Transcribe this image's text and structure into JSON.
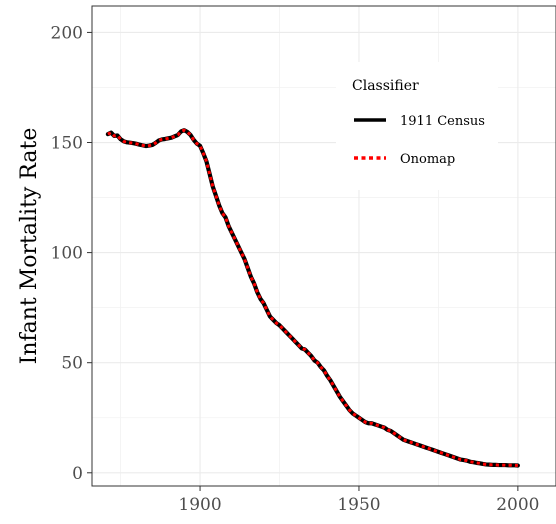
{
  "chart_data": {
    "type": "line",
    "title": "",
    "xlabel": "",
    "ylabel": "Infant Mortality Rate",
    "xlim": [
      1866,
      2012
    ],
    "ylim": [
      -6,
      212
    ],
    "xticks": [
      1900,
      1950,
      2000
    ],
    "yticks": [
      0,
      50,
      100,
      150,
      200
    ],
    "x_tick_labels": [
      "1900",
      "1950",
      "2000"
    ],
    "y_tick_labels": [
      "0",
      "50",
      "100",
      "150",
      "200"
    ],
    "grid": true,
    "legend": {
      "title": "Classifier",
      "placement": "top-right",
      "entries": [
        "1911 Census",
        "Onomap"
      ]
    },
    "series": [
      {
        "name": "1911 Census",
        "color": "#000000",
        "style": "solid",
        "x": [
          1871,
          1872,
          1873,
          1874,
          1875,
          1876,
          1877,
          1878,
          1879,
          1880,
          1881,
          1882,
          1883,
          1884,
          1885,
          1886,
          1887,
          1888,
          1889,
          1890,
          1891,
          1892,
          1893,
          1894,
          1895,
          1896,
          1897,
          1898,
          1899,
          1900,
          1901,
          1902,
          1903,
          1904,
          1905,
          1906,
          1907,
          1908,
          1909,
          1910,
          1911,
          1912,
          1913,
          1914,
          1915,
          1916,
          1917,
          1918,
          1919,
          1920,
          1921,
          1922,
          1923,
          1924,
          1925,
          1926,
          1927,
          1928,
          1929,
          1930,
          1931,
          1932,
          1933,
          1934,
          1935,
          1936,
          1937,
          1938,
          1939,
          1940,
          1941,
          1942,
          1943,
          1944,
          1945,
          1946,
          1947,
          1948,
          1949,
          1950,
          1951,
          1952,
          1953,
          1954,
          1955,
          1956,
          1957,
          1958,
          1959,
          1960,
          1961,
          1962,
          1963,
          1964,
          1965,
          1966,
          1967,
          1968,
          1969,
          1970,
          1971,
          1972,
          1973,
          1974,
          1975,
          1976,
          1977,
          1978,
          1979,
          1980,
          1981,
          1982,
          1983,
          1984,
          1985,
          1986,
          1987,
          1988,
          1989,
          1990,
          1991,
          1992,
          1993,
          1994,
          1995,
          1996,
          1997,
          1998,
          1999,
          2000
        ],
        "values": [
          153.8,
          154.5,
          153.0,
          153.2,
          151.5,
          150.5,
          150.1,
          149.9,
          149.7,
          149.4,
          149.0,
          148.7,
          148.4,
          148.6,
          148.9,
          149.8,
          150.9,
          151.4,
          151.6,
          151.9,
          152.2,
          152.8,
          153.4,
          155.0,
          155.6,
          154.8,
          153.4,
          151.2,
          149.5,
          148.5,
          145.2,
          141.5,
          135.8,
          130.0,
          125.8,
          121.5,
          118.0,
          116.0,
          112.0,
          109.0,
          106.0,
          103.0,
          100.0,
          97.0,
          93.0,
          89.0,
          86.0,
          82.0,
          79.0,
          77.0,
          74.0,
          71.0,
          69.5,
          68.0,
          67.0,
          65.5,
          64.0,
          62.5,
          61.0,
          59.5,
          58.0,
          56.5,
          56.0,
          54.5,
          53.0,
          51.0,
          50.0,
          48.0,
          46.5,
          44.0,
          42.0,
          39.5,
          37.0,
          34.5,
          32.5,
          30.5,
          28.5,
          27.0,
          26.0,
          25.0,
          24.0,
          23.0,
          22.5,
          22.5,
          22.0,
          21.5,
          21.0,
          20.5,
          19.5,
          19.0,
          18.0,
          17.0,
          16.0,
          15.0,
          14.5,
          14.0,
          13.5,
          13.0,
          12.5,
          12.0,
          11.5,
          11.0,
          10.5,
          10.0,
          9.5,
          9.0,
          8.5,
          8.0,
          7.5,
          7.0,
          6.5,
          6.0,
          5.8,
          5.5,
          5.0,
          4.8,
          4.5,
          4.3,
          4.0,
          3.8,
          3.7,
          3.6,
          3.6,
          3.5,
          3.5,
          3.5,
          3.4,
          3.4,
          3.4,
          3.3
        ]
      },
      {
        "name": "Onomap",
        "color": "#ff0000",
        "style": "dotted",
        "x": [
          1871,
          1872,
          1873,
          1874,
          1875,
          1876,
          1877,
          1878,
          1879,
          1880,
          1881,
          1882,
          1883,
          1884,
          1885,
          1886,
          1887,
          1888,
          1889,
          1890,
          1891,
          1892,
          1893,
          1894,
          1895,
          1896,
          1897,
          1898,
          1899,
          1900,
          1901,
          1902,
          1903,
          1904,
          1905,
          1906,
          1907,
          1908,
          1909,
          1910,
          1911,
          1912,
          1913,
          1914,
          1915,
          1916,
          1917,
          1918,
          1919,
          1920,
          1921,
          1922,
          1923,
          1924,
          1925,
          1926,
          1927,
          1928,
          1929,
          1930,
          1931,
          1932,
          1933,
          1934,
          1935,
          1936,
          1937,
          1938,
          1939,
          1940,
          1941,
          1942,
          1943,
          1944,
          1945,
          1946,
          1947,
          1948,
          1949,
          1950,
          1951,
          1952,
          1953,
          1954,
          1955,
          1956,
          1957,
          1958,
          1959,
          1960,
          1961,
          1962,
          1963,
          1964,
          1965,
          1966,
          1967,
          1968,
          1969,
          1970,
          1971,
          1972,
          1973,
          1974,
          1975,
          1976,
          1977,
          1978,
          1979,
          1980,
          1981,
          1982,
          1983,
          1984,
          1985,
          1986,
          1987,
          1988,
          1989,
          1990,
          1991,
          1992,
          1993,
          1994,
          1995,
          1996,
          1997,
          1998,
          1999,
          2000
        ],
        "values": [
          153.8,
          154.5,
          153.0,
          153.2,
          151.5,
          150.5,
          150.1,
          149.9,
          149.7,
          149.4,
          149.0,
          148.7,
          148.4,
          148.6,
          148.9,
          149.8,
          150.9,
          151.4,
          151.6,
          151.9,
          152.2,
          152.8,
          153.4,
          155.0,
          155.6,
          154.8,
          153.4,
          151.2,
          149.5,
          148.5,
          145.2,
          141.5,
          135.8,
          130.0,
          125.8,
          121.5,
          118.0,
          116.0,
          112.0,
          109.0,
          106.0,
          103.0,
          100.0,
          97.0,
          93.0,
          89.0,
          86.0,
          82.0,
          79.0,
          77.0,
          74.0,
          71.0,
          69.5,
          68.0,
          67.0,
          65.5,
          64.0,
          62.5,
          61.0,
          59.5,
          58.0,
          56.5,
          56.0,
          54.5,
          53.0,
          51.0,
          50.0,
          48.0,
          46.5,
          44.0,
          42.0,
          39.5,
          37.0,
          34.5,
          32.5,
          30.5,
          28.5,
          27.0,
          26.0,
          25.0,
          24.0,
          23.0,
          22.5,
          22.5,
          22.0,
          21.5,
          21.0,
          20.5,
          19.5,
          19.0,
          18.0,
          17.0,
          16.0,
          15.0,
          14.5,
          14.0,
          13.5,
          13.0,
          12.5,
          12.0,
          11.5,
          11.0,
          10.5,
          10.0,
          9.5,
          9.0,
          8.5,
          8.0,
          7.5,
          7.0,
          6.5,
          6.0,
          5.8,
          5.5,
          5.0,
          4.8,
          4.5,
          4.3,
          4.0,
          3.8,
          3.7,
          3.6,
          3.6,
          3.5,
          3.5,
          3.5,
          3.4,
          3.4,
          3.4,
          3.3
        ]
      }
    ]
  }
}
